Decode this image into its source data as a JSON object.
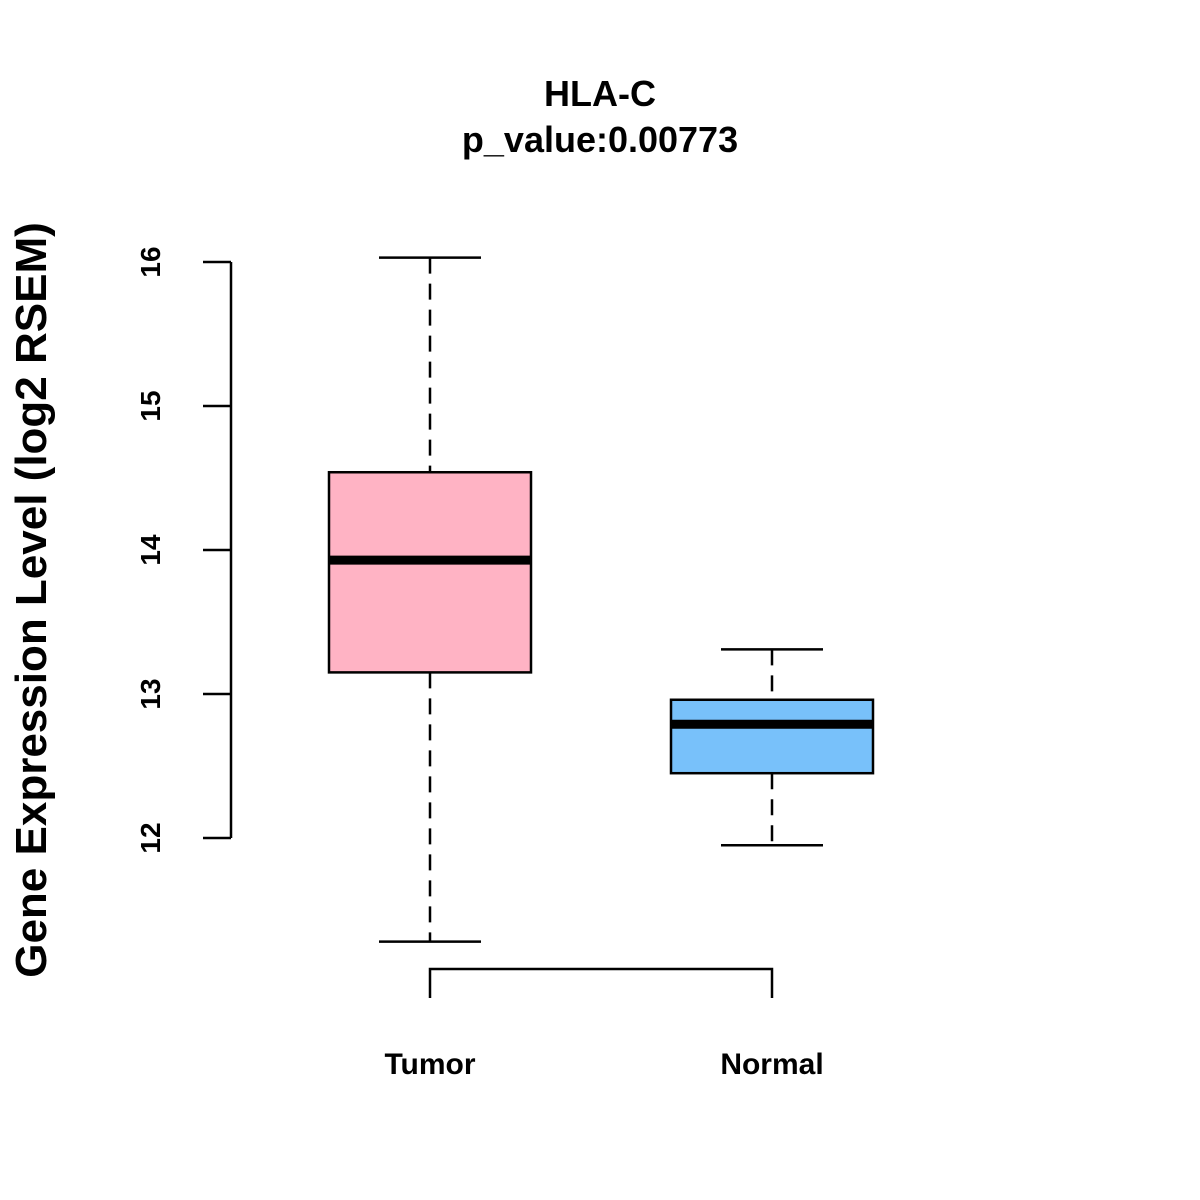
{
  "chart_data": {
    "type": "box",
    "title": "HLA-C",
    "subtitle": "p_value:0.00773",
    "ylabel": "Gene Expression Level (log2 RSEM)",
    "yticks": [
      12,
      13,
      14,
      15,
      16
    ],
    "categories": [
      "Tumor",
      "Normal"
    ],
    "boxes": [
      {
        "category": "Tumor",
        "whisker_low": 11.28,
        "q1": 13.15,
        "median": 13.93,
        "q3": 14.54,
        "whisker_high": 16.03,
        "color": "#FFB3C4"
      },
      {
        "category": "Normal",
        "whisker_low": 11.95,
        "q1": 12.45,
        "median": 12.79,
        "q3": 12.96,
        "whisker_high": 13.31,
        "color": "#78C1FA"
      }
    ],
    "comparison_bracket": [
      "Tumor",
      "Normal"
    ]
  }
}
